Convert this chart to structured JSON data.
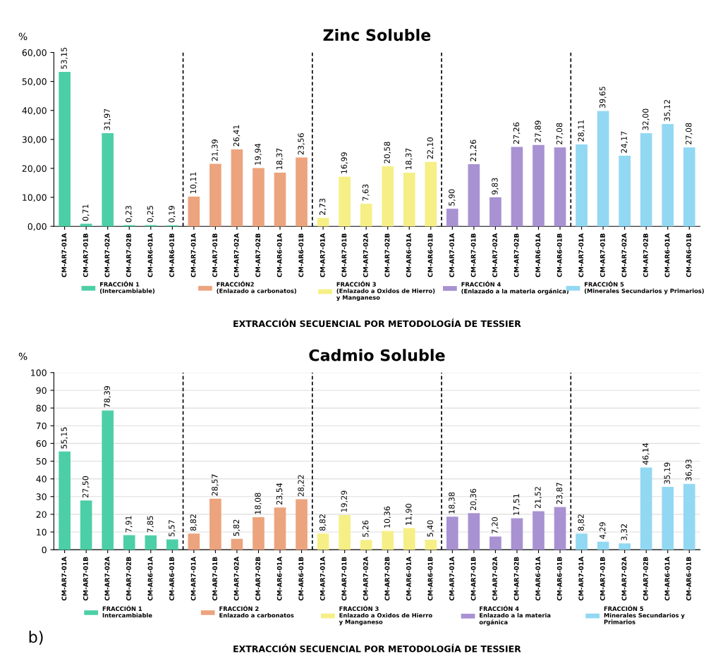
{
  "chart_data": [
    {
      "type": "bar",
      "title": "Zinc Soluble",
      "ylabel": "%",
      "xlabel": "EXTRACCIÓN SECUENCIAL POR METODOLOGÍA DE TESSIER",
      "categories": [
        "CM-AR7-01A",
        "CM-AR7-01B",
        "CM-AR7-02A",
        "CM-AR7-02B",
        "CM-AR6-01A",
        "CM-AR6-01B",
        "CM-AR7-01A",
        "CM-AR7-01B",
        "CM-AR7-02A",
        "CM-AR7-02B",
        "CM-AR6-01A",
        "CM-AR6-01B",
        "CM-AR7-01A",
        "CM-AR7-01B",
        "CM-AR7-02A",
        "CM-AR7-02B",
        "CM-AR6-01A",
        "CM-AR6-01B",
        "CM-AR7-01A",
        "CM-AR7-01B",
        "CM-AR7-02A",
        "CM-AR7-02B",
        "CM-AR6-01A",
        "CM-AR6-01B",
        "CM-AR7-01A",
        "CM-AR7-01B",
        "CM-AR7-02A",
        "CM-AR7-02B",
        "CM-AR6-01A",
        "CM-AR6-01B"
      ],
      "series": [
        {
          "name": "FRACCIÓN 1\n(Intercambiable)",
          "color": "#4ccfa6",
          "values": [
            53.15,
            0.71,
            31.97,
            0.23,
            0.25,
            0.19,
            null,
            null,
            null,
            null,
            null,
            null,
            null,
            null,
            null,
            null,
            null,
            null,
            null,
            null,
            null,
            null,
            null,
            null,
            null,
            null,
            null,
            null,
            null,
            null
          ],
          "value_labels": [
            "53,15",
            "0,71",
            "31,97",
            "0,23",
            "0,25",
            "0,19",
            null,
            null,
            null,
            null,
            null,
            null,
            null,
            null,
            null,
            null,
            null,
            null,
            null,
            null,
            null,
            null,
            null,
            null,
            null,
            null,
            null,
            null,
            null,
            null
          ]
        },
        {
          "name": "FRACCIÓN2\n(Enlazado a carbonatos)",
          "color": "#eca47e",
          "values": [
            null,
            null,
            null,
            null,
            null,
            null,
            10.11,
            21.39,
            26.41,
            19.94,
            18.37,
            23.56,
            null,
            null,
            null,
            null,
            null,
            null,
            null,
            null,
            null,
            null,
            null,
            null,
            null,
            null,
            null,
            null,
            null,
            null
          ],
          "value_labels": [
            null,
            null,
            null,
            null,
            null,
            null,
            "10,11",
            "21,39",
            "26,41",
            "19,94",
            "18,37",
            "23,56",
            null,
            null,
            null,
            null,
            null,
            null,
            null,
            null,
            null,
            null,
            null,
            null,
            null,
            null,
            null,
            null,
            null,
            null
          ]
        },
        {
          "name": "FRACCIÓN 3\n(Enlazado a Oxidos de Hierro)\ny Manganeso",
          "color": "#f6ef86",
          "values": [
            null,
            null,
            null,
            null,
            null,
            null,
            null,
            null,
            null,
            null,
            null,
            null,
            2.73,
            16.99,
            7.63,
            20.58,
            18.37,
            22.1,
            null,
            null,
            null,
            null,
            null,
            null,
            null,
            null,
            null,
            null,
            null,
            null
          ],
          "value_labels": [
            null,
            null,
            null,
            null,
            null,
            null,
            null,
            null,
            null,
            null,
            null,
            null,
            "2,73",
            "16,99",
            "7,63",
            "20,58",
            "18,37",
            "22,10",
            null,
            null,
            null,
            null,
            null,
            null,
            null,
            null,
            null,
            null,
            null,
            null
          ]
        },
        {
          "name": "FRACCIÓN 4\n(Enlazado a la materia orgánica)",
          "color": "#a892d2",
          "values": [
            null,
            null,
            null,
            null,
            null,
            null,
            null,
            null,
            null,
            null,
            null,
            null,
            null,
            null,
            null,
            null,
            null,
            null,
            5.9,
            21.26,
            9.83,
            27.26,
            27.89,
            27.08,
            null,
            null,
            null,
            null,
            null,
            null
          ],
          "value_labels": [
            null,
            null,
            null,
            null,
            null,
            null,
            null,
            null,
            null,
            null,
            null,
            null,
            null,
            null,
            null,
            null,
            null,
            null,
            "5,90",
            "21,26",
            "9,83",
            "27,26",
            "27,89",
            "27,08",
            null,
            null,
            null,
            null,
            null,
            null
          ]
        },
        {
          "name": "FRACCIÓN 5\n(Minerales Secundarios y Primarios)",
          "color": "#92d8f2",
          "values": [
            null,
            null,
            null,
            null,
            null,
            null,
            null,
            null,
            null,
            null,
            null,
            null,
            null,
            null,
            null,
            null,
            null,
            null,
            null,
            null,
            null,
            null,
            null,
            null,
            28.11,
            39.65,
            24.17,
            32.0,
            35.12,
            27.08
          ],
          "value_labels": [
            null,
            null,
            null,
            null,
            null,
            null,
            null,
            null,
            null,
            null,
            null,
            null,
            null,
            null,
            null,
            null,
            null,
            null,
            null,
            null,
            null,
            null,
            null,
            null,
            "28,11",
            "39,65",
            "24,17",
            "32,00",
            "35,12",
            "27,08"
          ]
        }
      ],
      "ylim": [
        0,
        60
      ],
      "yticks": [
        {
          "value": 0,
          "label": "0,00"
        },
        {
          "value": 10,
          "label": "10,00"
        },
        {
          "value": 20,
          "label": "20,00"
        },
        {
          "value": 30,
          "label": "30,00"
        },
        {
          "value": 40,
          "label": "40,00"
        },
        {
          "value": 50,
          "label": "50,00"
        },
        {
          "value": 60,
          "label": "60,00"
        }
      ],
      "grid": false,
      "legend": "bottom"
    },
    {
      "type": "bar",
      "title": "Cadmio Soluble",
      "ylabel": "%",
      "xlabel": "EXTRACCIÓN SECUENCIAL POR METODOLOGÍA DE TESSIER",
      "annotations": [
        "b)"
      ],
      "categories": [
        "CM-AR7-01A",
        "CM-AR7-01B",
        "CM-AR7-02A",
        "CM-AR7-02B",
        "CM-AR6-01A",
        "CM-AR6-01B",
        "CM-AR7-01A",
        "CM-AR7-01B",
        "CM-AR7-02A",
        "CM-AR7-02B",
        "CM-AR6-01A",
        "CM-AR6-01B",
        "CM-AR7-01A",
        "CM-AR7-01B",
        "CM-AR7-02A",
        "CM-AR7-02B",
        "CM-AR6-01A",
        "CM-AR6-01B",
        "CM-AR7-01A",
        "CM-AR7-01B",
        "CM-AR7-02A",
        "CM-AR7-02B",
        "CM-AR6-01A",
        "CM-AR6-01B",
        "CM-AR7-01A",
        "CM-AR7-01B",
        "CM-AR7-02A",
        "CM-AR7-02B",
        "CM-AR6-01A",
        "CM-AR6-01B"
      ],
      "series": [
        {
          "name": "FRACCIÓN 1\nIntercambiable",
          "color": "#4ccfa6",
          "values": [
            55.15,
            27.5,
            78.39,
            7.91,
            7.85,
            5.57,
            null,
            null,
            null,
            null,
            null,
            null,
            null,
            null,
            null,
            null,
            null,
            null,
            null,
            null,
            null,
            null,
            null,
            null,
            null,
            null,
            null,
            null,
            null,
            null
          ],
          "value_labels": [
            "55,15",
            "27,50",
            "78,39",
            "7,91",
            "7,85",
            "5,57",
            null,
            null,
            null,
            null,
            null,
            null,
            null,
            null,
            null,
            null,
            null,
            null,
            null,
            null,
            null,
            null,
            null,
            null,
            null,
            null,
            null,
            null,
            null,
            null
          ]
        },
        {
          "name": "FRACCIÓN 2\nEnlazado a carbonatos",
          "color": "#eca47e",
          "values": [
            null,
            null,
            null,
            null,
            null,
            null,
            8.82,
            28.57,
            5.82,
            18.08,
            23.54,
            28.22,
            null,
            null,
            null,
            null,
            null,
            null,
            null,
            null,
            null,
            null,
            null,
            null,
            null,
            null,
            null,
            null,
            null,
            null
          ],
          "value_labels": [
            null,
            null,
            null,
            null,
            null,
            null,
            "8,82",
            "28,57",
            "5,82",
            "18,08",
            "23,54",
            "28,22",
            null,
            null,
            null,
            null,
            null,
            null,
            null,
            null,
            null,
            null,
            null,
            null,
            null,
            null,
            null,
            null,
            null,
            null
          ]
        },
        {
          "name": "FRACCIÓN 3\nEnlazado a Oxidos de Hierro\ny Manganeso",
          "color": "#f6ef86",
          "values": [
            null,
            null,
            null,
            null,
            null,
            null,
            null,
            null,
            null,
            null,
            null,
            null,
            8.82,
            19.29,
            5.26,
            10.36,
            11.9,
            5.4,
            null,
            null,
            null,
            null,
            null,
            null,
            null,
            null,
            null,
            null,
            null,
            null
          ],
          "value_labels": [
            null,
            null,
            null,
            null,
            null,
            null,
            null,
            null,
            null,
            null,
            null,
            null,
            "8,82",
            "19,29",
            "5,26",
            "10,36",
            "11,90",
            "5,40",
            null,
            null,
            null,
            null,
            null,
            null,
            null,
            null,
            null,
            null,
            null,
            null
          ]
        },
        {
          "name": "FRACCIÓN 4\nEnlazado a la materia\norgánica",
          "color": "#a892d2",
          "values": [
            null,
            null,
            null,
            null,
            null,
            null,
            null,
            null,
            null,
            null,
            null,
            null,
            null,
            null,
            null,
            null,
            null,
            null,
            18.38,
            20.36,
            7.2,
            17.51,
            21.52,
            23.87,
            null,
            null,
            null,
            null,
            null,
            null
          ],
          "value_labels": [
            null,
            null,
            null,
            null,
            null,
            null,
            null,
            null,
            null,
            null,
            null,
            null,
            null,
            null,
            null,
            null,
            null,
            null,
            "18,38",
            "20,36",
            "7,20",
            "17,51",
            "21,52",
            "23,87",
            null,
            null,
            null,
            null,
            null,
            null
          ]
        },
        {
          "name": "FRACCIÓN 5\nMinerales Secundarios y\nPrimarios",
          "color": "#92d8f2",
          "values": [
            null,
            null,
            null,
            null,
            null,
            null,
            null,
            null,
            null,
            null,
            null,
            null,
            null,
            null,
            null,
            null,
            null,
            null,
            null,
            null,
            null,
            null,
            null,
            null,
            8.82,
            4.29,
            3.32,
            46.14,
            35.19,
            36.93
          ],
          "value_labels": [
            null,
            null,
            null,
            null,
            null,
            null,
            null,
            null,
            null,
            null,
            null,
            null,
            null,
            null,
            null,
            null,
            null,
            null,
            null,
            null,
            null,
            null,
            null,
            null,
            "8,82",
            "4,29",
            "3,32",
            "46,14",
            "35,19",
            "36,93"
          ]
        }
      ],
      "ylim": [
        0,
        100
      ],
      "yticks": [
        0,
        10,
        20,
        30,
        40,
        50,
        60,
        70,
        80,
        90,
        100
      ],
      "grid": "y",
      "legend": "bottom"
    }
  ]
}
